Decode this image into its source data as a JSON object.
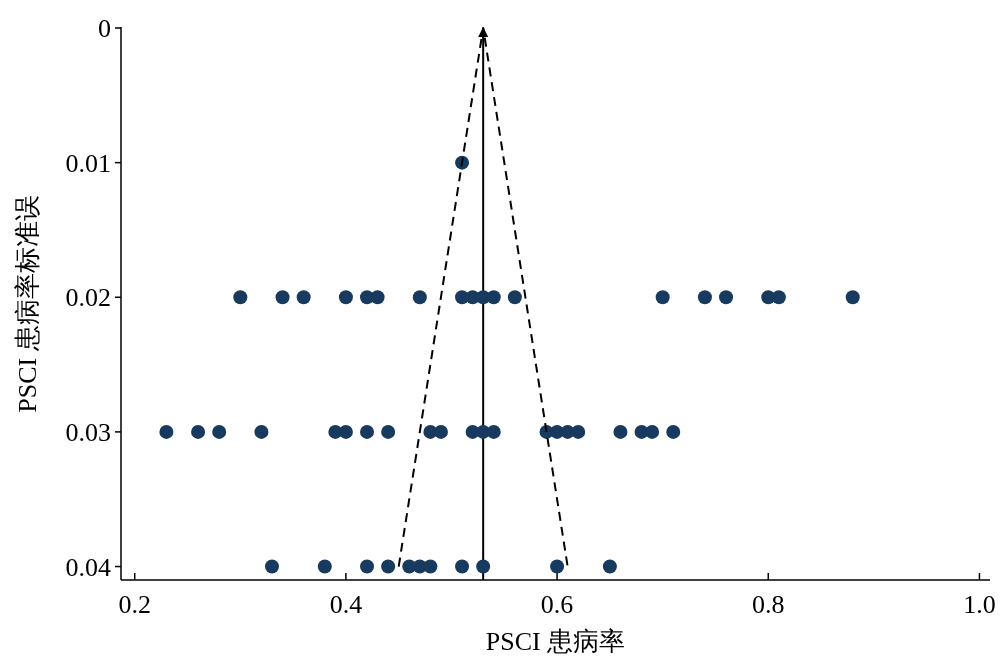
{
  "chart_data": {
    "type": "scatter",
    "xlabel": "PSCI 患病率",
    "ylabel": "PSCI 患病率标准误",
    "xlim": [
      0.187,
      1.01
    ],
    "xticks": [
      0.2,
      0.4,
      0.6,
      0.8,
      {
        "value": 1,
        "label": "1.0"
      }
    ],
    "ylim": [
      0.041,
      0
    ],
    "yticks": [
      0,
      0.01,
      0.02,
      0.03,
      0.04
    ],
    "marker": "circle",
    "series": [
      {
        "color": "#173a5e",
        "x": [
          0.51,
          0.3,
          0.34,
          0.36,
          0.4,
          0.42,
          0.43,
          0.47,
          0.51,
          0.52,
          0.53,
          0.54,
          0.56,
          0.7,
          0.74,
          0.76,
          0.8,
          0.81,
          0.88,
          0.23,
          0.26,
          0.28,
          0.32,
          0.39,
          0.4,
          0.42,
          0.44,
          0.48,
          0.49,
          0.52,
          0.53,
          0.54,
          0.59,
          0.6,
          0.61,
          0.62,
          0.66,
          0.68,
          0.69,
          0.71,
          0.33,
          0.38,
          0.42,
          0.44,
          0.46,
          0.47,
          0.48,
          0.51,
          0.53,
          0.6,
          0.65
        ],
        "values": [
          0.01,
          0.02,
          0.02,
          0.02,
          0.02,
          0.02,
          0.02,
          0.02,
          0.02,
          0.02,
          0.02,
          0.02,
          0.02,
          0.02,
          0.02,
          0.02,
          0.02,
          0.02,
          0.02,
          0.03,
          0.03,
          0.03,
          0.03,
          0.03,
          0.03,
          0.03,
          0.03,
          0.03,
          0.03,
          0.03,
          0.03,
          0.03,
          0.03,
          0.03,
          0.03,
          0.03,
          0.03,
          0.03,
          0.03,
          0.03,
          0.04,
          0.04,
          0.04,
          0.04,
          0.04,
          0.04,
          0.04,
          0.04,
          0.04,
          0.04,
          0.04
        ]
      },
      {
        "type": "line",
        "line_style": "dashed",
        "marker": "none",
        "color": "#000000",
        "x": [
          0.45,
          0.53,
          0.61
        ],
        "values": [
          0.04,
          0,
          0.04
        ]
      }
    ],
    "ref_lines": [
      {
        "axis": "x",
        "value": 0.53,
        "color": "#000000",
        "line_style": "solid"
      }
    ]
  }
}
